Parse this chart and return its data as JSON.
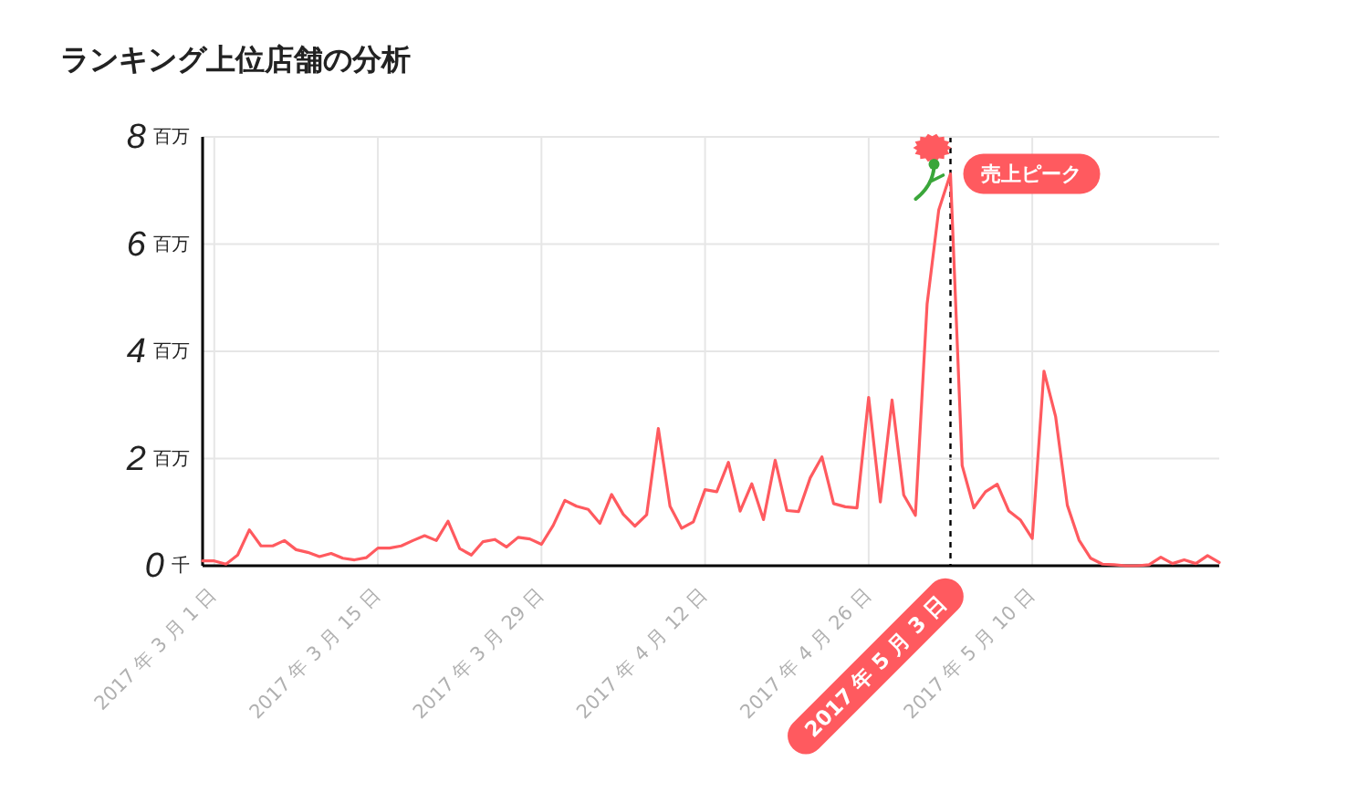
{
  "chart_data": {
    "type": "line",
    "title": "ランキング上位店舗の分析",
    "x": [
      "2017-02-28",
      "2017-03-01",
      "2017-03-02",
      "2017-03-03",
      "2017-03-04",
      "2017-03-05",
      "2017-03-06",
      "2017-03-07",
      "2017-03-08",
      "2017-03-09",
      "2017-03-10",
      "2017-03-11",
      "2017-03-12",
      "2017-03-13",
      "2017-03-14",
      "2017-03-15",
      "2017-03-16",
      "2017-03-17",
      "2017-03-18",
      "2017-03-19",
      "2017-03-20",
      "2017-03-21",
      "2017-03-22",
      "2017-03-23",
      "2017-03-24",
      "2017-03-25",
      "2017-03-26",
      "2017-03-27",
      "2017-03-28",
      "2017-03-29",
      "2017-03-30",
      "2017-03-31",
      "2017-04-01",
      "2017-04-02",
      "2017-04-03",
      "2017-04-04",
      "2017-04-05",
      "2017-04-06",
      "2017-04-07",
      "2017-04-08",
      "2017-04-09",
      "2017-04-10",
      "2017-04-11",
      "2017-04-12",
      "2017-04-13",
      "2017-04-14",
      "2017-04-15",
      "2017-04-16",
      "2017-04-17",
      "2017-04-18",
      "2017-04-19",
      "2017-04-20",
      "2017-04-21",
      "2017-04-22",
      "2017-04-23",
      "2017-04-24",
      "2017-04-25",
      "2017-04-26",
      "2017-04-27",
      "2017-04-28",
      "2017-04-29",
      "2017-04-30",
      "2017-05-01",
      "2017-05-02",
      "2017-05-03",
      "2017-05-04",
      "2017-05-05",
      "2017-05-06",
      "2017-05-07",
      "2017-05-08",
      "2017-05-09",
      "2017-05-10",
      "2017-05-11",
      "2017-05-12",
      "2017-05-13",
      "2017-05-14",
      "2017-05-15",
      "2017-05-16",
      "2017-05-17",
      "2017-05-18",
      "2017-05-19",
      "2017-05-20",
      "2017-05-21",
      "2017-05-22",
      "2017-05-23",
      "2017-05-24",
      "2017-05-25",
      "2017-05-26"
    ],
    "values": [
      0.09,
      0.09,
      0.03,
      0.2,
      0.67,
      0.37,
      0.37,
      0.47,
      0.3,
      0.25,
      0.17,
      0.23,
      0.14,
      0.11,
      0.15,
      0.33,
      0.33,
      0.37,
      0.47,
      0.56,
      0.47,
      0.83,
      0.32,
      0.2,
      0.45,
      0.49,
      0.35,
      0.53,
      0.5,
      0.4,
      0.75,
      1.22,
      1.11,
      1.05,
      0.79,
      1.33,
      0.96,
      0.74,
      0.95,
      2.56,
      1.11,
      0.7,
      0.82,
      1.42,
      1.38,
      1.93,
      1.02,
      1.53,
      0.86,
      1.97,
      1.03,
      1.01,
      1.64,
      2.03,
      1.16,
      1.1,
      1.08,
      3.14,
      1.19,
      3.09,
      1.32,
      0.94,
      4.88,
      6.64,
      7.31,
      1.87,
      1.08,
      1.38,
      1.52,
      1.02,
      0.85,
      0.51,
      3.63,
      2.78,
      1.13,
      0.48,
      0.14,
      0.03,
      0.02,
      0,
      0,
      0.02,
      0.16,
      0.04,
      0.11,
      0.04,
      0.19,
      0.06
    ],
    "color": "#ff5a5f",
    "xlim": [
      "2017-02-28",
      "2017-05-26"
    ],
    "xticks": [
      {
        "value": "2017-03-01",
        "label": "2017 年 3 月 1 日"
      },
      {
        "value": "2017-03-15",
        "label": "2017 年 3 月 15 日"
      },
      {
        "value": "2017-03-29",
        "label": "2017 年 3 月 29 日"
      },
      {
        "value": "2017-04-12",
        "label": "2017 年 4 月 12 日"
      },
      {
        "value": "2017-04-26",
        "label": "2017 年 4 月 26 日"
      },
      {
        "value": "2017-05-10",
        "label": "2017 年 5 月 10 日"
      }
    ],
    "ylim": [
      0,
      8
    ],
    "yticks": [
      {
        "value": 0,
        "label": "0 千"
      },
      {
        "value": 2,
        "label": "2 百万"
      },
      {
        "value": 4,
        "label": "4 百万"
      },
      {
        "value": 6,
        "label": "6 百万"
      },
      {
        "value": 8,
        "label": "8 百万"
      }
    ],
    "grid": true,
    "ref_lines": [
      {
        "axis": "x",
        "value": "2017-05-03",
        "label": "2017 年 5 月 3 日",
        "color": "#000000",
        "line_style": "dashed"
      }
    ],
    "annotations": [
      {
        "text": "売上ピーク",
        "x": "2017-05-03",
        "y": 7.31
      }
    ]
  }
}
